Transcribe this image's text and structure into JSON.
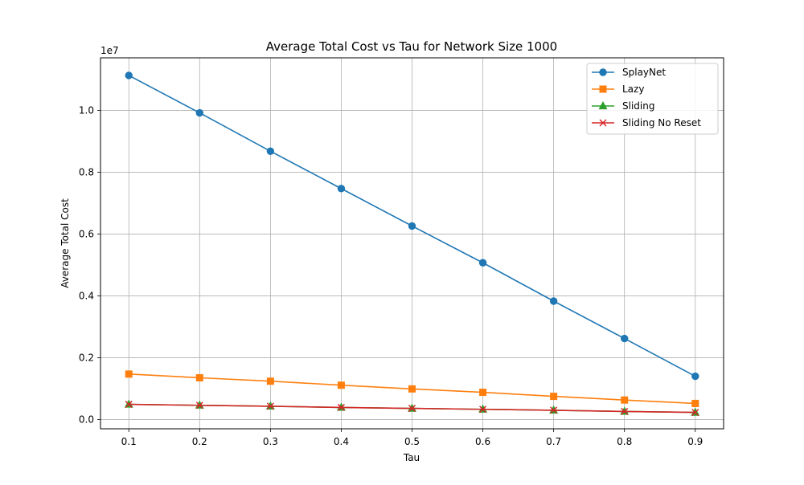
{
  "chart_data": {
    "type": "line",
    "title": "Average Total Cost vs Tau for Network Size 1000",
    "xlabel": "Tau",
    "ylabel": "Average Total Cost",
    "offset_label": "1e7",
    "x": [
      0.1,
      0.2,
      0.3,
      0.4,
      0.5,
      0.6,
      0.7,
      0.8,
      0.9
    ],
    "xticks": [
      "0.1",
      "0.2",
      "0.3",
      "0.4",
      "0.5",
      "0.6",
      "0.7",
      "0.8",
      "0.9"
    ],
    "yticks": [
      "0.0",
      "0.2",
      "0.4",
      "0.6",
      "0.8",
      "1.0"
    ],
    "xlim": [
      0.06,
      0.94
    ],
    "ylim": [
      -300000,
      11700000
    ],
    "grid": true,
    "legend_position": "top-right",
    "series": [
      {
        "name": "SplayNet",
        "color": "#1f77b4",
        "marker": "circle",
        "values": [
          11130000,
          9920000,
          8680000,
          7470000,
          6260000,
          5070000,
          3830000,
          2620000,
          1400000
        ]
      },
      {
        "name": "Lazy",
        "color": "#ff7f0e",
        "marker": "square",
        "values": [
          1470000,
          1350000,
          1240000,
          1110000,
          990000,
          880000,
          750000,
          630000,
          520000
        ]
      },
      {
        "name": "Sliding",
        "color": "#2ca02c",
        "marker": "triangle",
        "values": [
          490000,
          460000,
          430000,
          390000,
          360000,
          330000,
          300000,
          260000,
          230000
        ]
      },
      {
        "name": "Sliding No Reset",
        "color": "#d62728",
        "marker": "x",
        "values": [
          490000,
          460000,
          430000,
          390000,
          360000,
          330000,
          300000,
          260000,
          230000
        ]
      }
    ]
  }
}
